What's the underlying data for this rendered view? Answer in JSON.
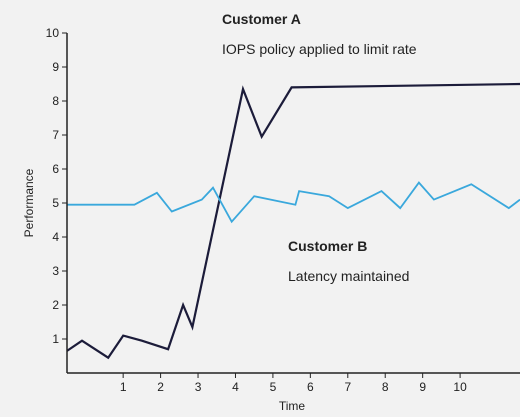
{
  "chart_data": {
    "type": "line",
    "xlabel": "Time",
    "ylabel": "Performance",
    "xlim": [
      -0.5,
      11.6
    ],
    "ylim": [
      0,
      10
    ],
    "x_ticks": [
      1,
      2,
      3,
      4,
      5,
      6,
      7,
      8,
      9,
      10
    ],
    "y_ticks": [
      1,
      2,
      3,
      4,
      5,
      6,
      7,
      8,
      9,
      10
    ],
    "grid": false,
    "legend": "none",
    "series": [
      {
        "name": "Customer A",
        "color": "#1c1c3a",
        "points": [
          [
            -0.5,
            0.65
          ],
          [
            -0.1,
            0.95
          ],
          [
            0.6,
            0.45
          ],
          [
            1.0,
            1.1
          ],
          [
            1.5,
            0.95
          ],
          [
            2.2,
            0.7
          ],
          [
            2.6,
            2.0
          ],
          [
            2.85,
            1.35
          ],
          [
            4.2,
            8.35
          ],
          [
            4.7,
            6.95
          ],
          [
            5.5,
            8.4
          ],
          [
            11.6,
            8.5
          ]
        ]
      },
      {
        "name": "Customer B",
        "color": "#3aa8dc",
        "points": [
          [
            -0.5,
            4.95
          ],
          [
            1.3,
            4.95
          ],
          [
            1.9,
            5.3
          ],
          [
            2.3,
            4.75
          ],
          [
            3.1,
            5.1
          ],
          [
            3.4,
            5.45
          ],
          [
            3.9,
            4.45
          ],
          [
            4.5,
            5.2
          ],
          [
            5.6,
            4.95
          ],
          [
            5.7,
            5.35
          ],
          [
            6.5,
            5.2
          ],
          [
            7.0,
            4.85
          ],
          [
            7.9,
            5.35
          ],
          [
            8.4,
            4.85
          ],
          [
            8.9,
            5.6
          ],
          [
            9.3,
            5.1
          ],
          [
            10.3,
            5.55
          ],
          [
            11.3,
            4.85
          ],
          [
            11.6,
            5.1
          ]
        ]
      }
    ],
    "annotations": [
      {
        "title": "Customer A",
        "text": "IOPS policy applied to limit rate"
      },
      {
        "title": "Customer B",
        "text": "Latency maintained"
      }
    ]
  }
}
